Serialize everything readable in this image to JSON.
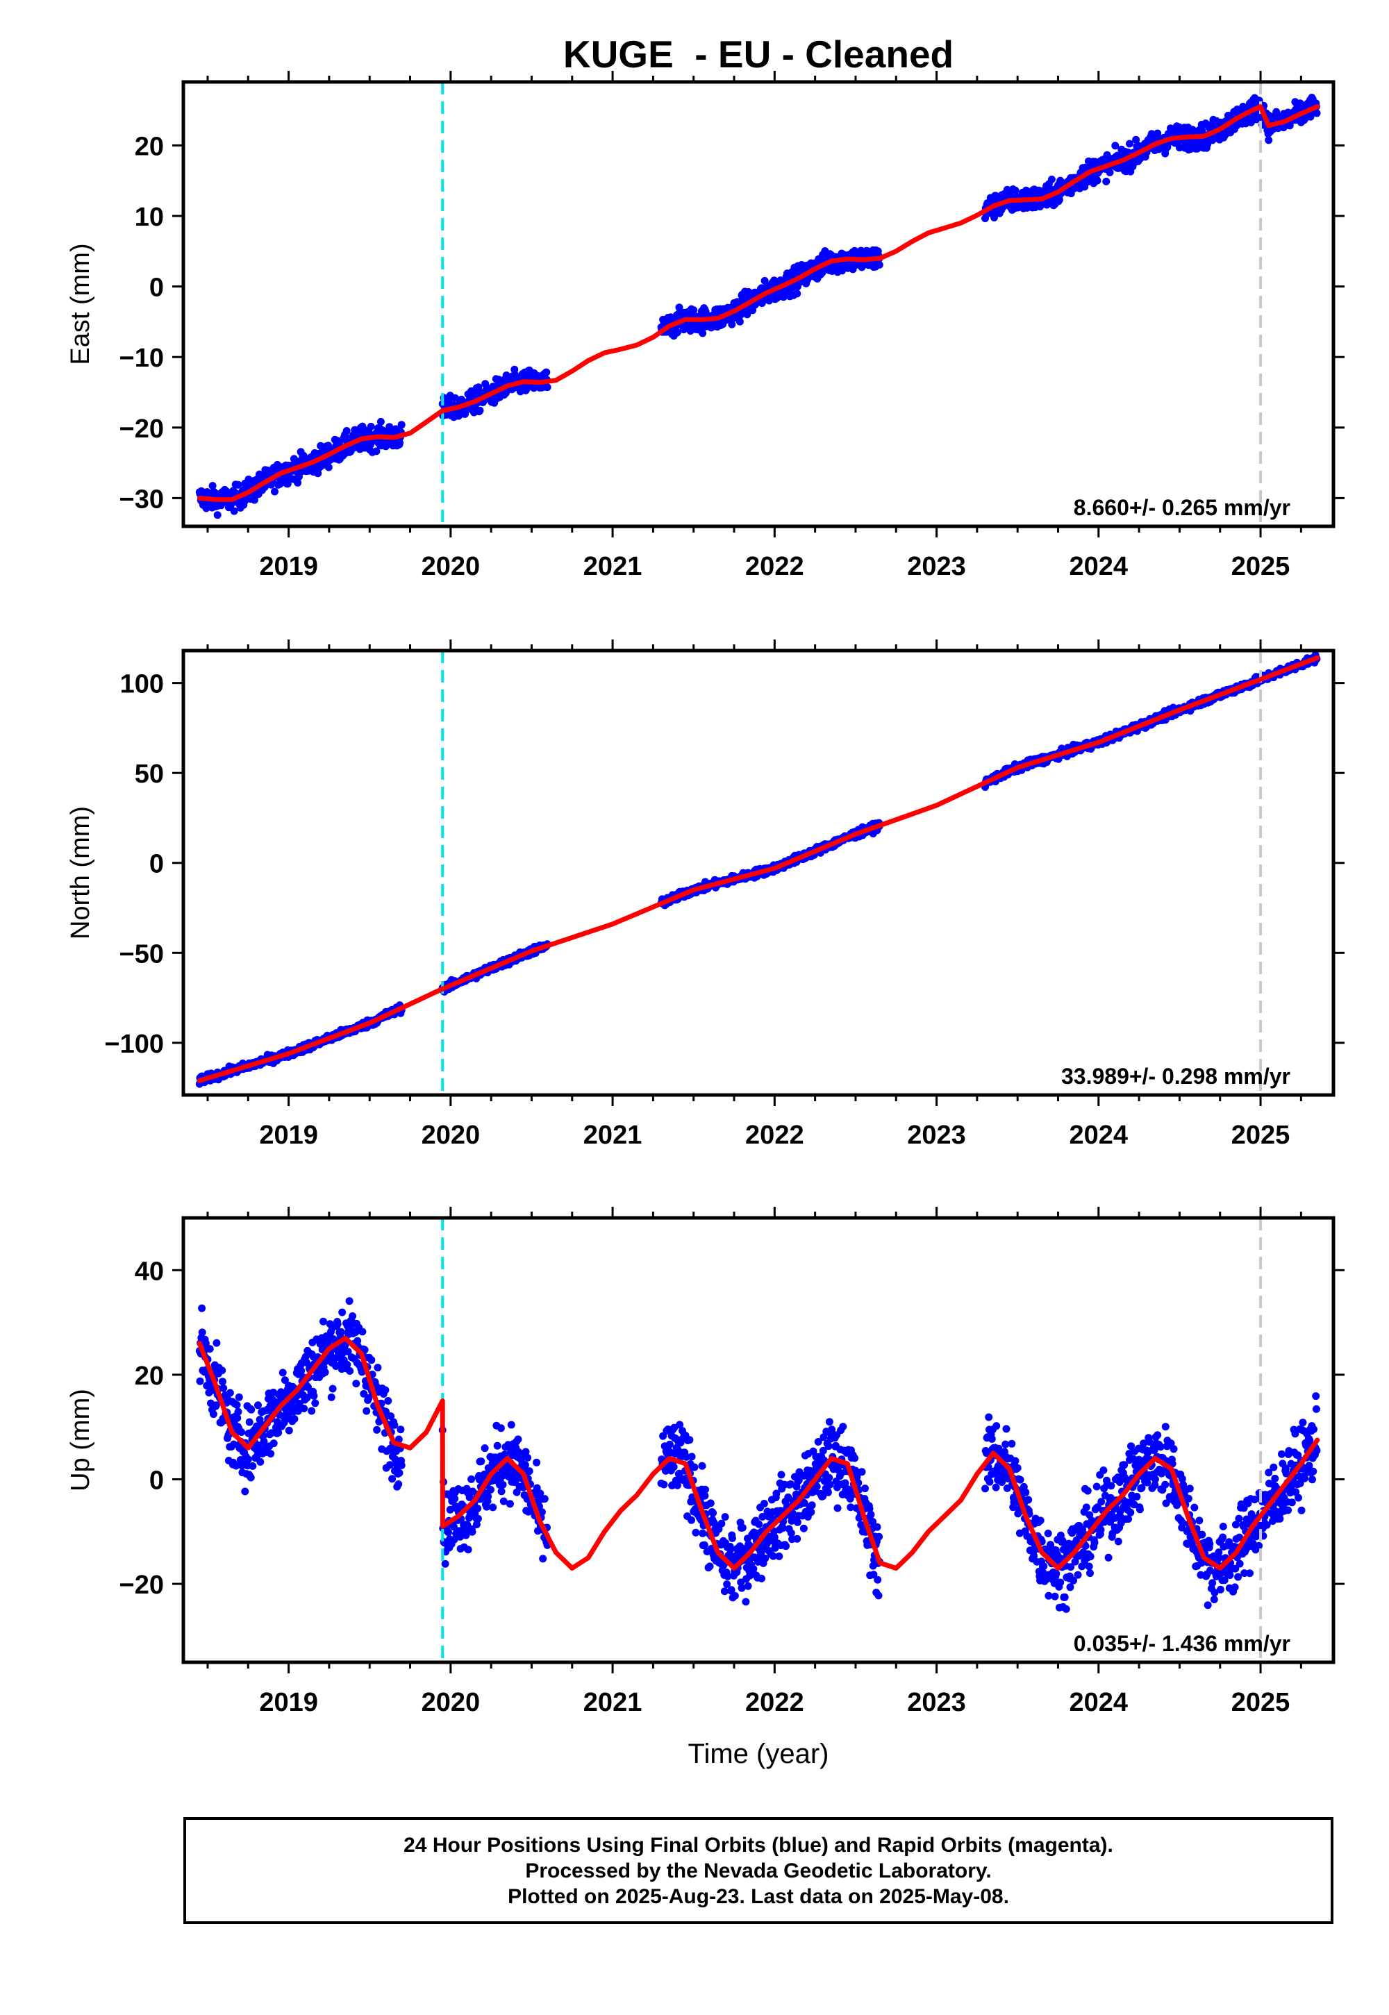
{
  "title": "KUGE  - EU - Cleaned",
  "colors": {
    "observations": "#0000ff",
    "model": "#ff0000",
    "marker_2020": "#00e5e5",
    "marker_2025": "#c8c8c8"
  },
  "chart_data": [
    {
      "type": "scatter",
      "component": "East",
      "ylabel": "East (mm)",
      "xlabel": "",
      "xlim": [
        2018.35,
        2025.45
      ],
      "ylim": [
        -34,
        29
      ],
      "yticks": [
        -30,
        -20,
        -10,
        0,
        10,
        20
      ],
      "xticks": [
        2019,
        2020,
        2021,
        2022,
        2023,
        2024,
        2025
      ],
      "vertical_lines": [
        {
          "x": 2019.95,
          "color": "cyan",
          "style": "dashed"
        },
        {
          "x": 2025.0,
          "color": "light-gray",
          "style": "dashed"
        }
      ],
      "rate_annotation": "8.660+/- 0.265 mm/yr",
      "observations": {
        "name": "24 Hour Positions (Final Orbits)",
        "segments": [
          [
            2018.45,
            2019.7
          ],
          [
            2019.95,
            2020.6
          ],
          [
            2021.3,
            2022.65
          ],
          [
            2023.3,
            2025.35
          ]
        ],
        "noise_mm": 1.2
      },
      "model": {
        "name": "fit",
        "x": [
          2018.45,
          2018.55,
          2018.65,
          2018.75,
          2018.85,
          2018.95,
          2019.05,
          2019.15,
          2019.25,
          2019.35,
          2019.45,
          2019.55,
          2019.65,
          2019.75,
          2019.85,
          2019.95,
          2020.05,
          2020.15,
          2020.25,
          2020.35,
          2020.45,
          2020.55,
          2020.65,
          2020.75,
          2020.85,
          2020.95,
          2021.05,
          2021.15,
          2021.25,
          2021.35,
          2021.45,
          2021.55,
          2021.65,
          2021.75,
          2021.85,
          2021.95,
          2022.05,
          2022.15,
          2022.25,
          2022.35,
          2022.45,
          2022.55,
          2022.65,
          2022.75,
          2022.85,
          2022.95,
          2023.05,
          2023.15,
          2023.25,
          2023.35,
          2023.45,
          2023.55,
          2023.65,
          2023.75,
          2023.85,
          2023.95,
          2024.05,
          2024.15,
          2024.25,
          2024.35,
          2024.45,
          2024.55,
          2024.65,
          2024.75,
          2024.85,
          2024.95,
          2025.0,
          2025.05,
          2025.15,
          2025.25,
          2025.35
        ],
        "y": [
          -30,
          -30.2,
          -30.2,
          -29.2,
          -27.8,
          -26.5,
          -25.7,
          -24.9,
          -23.8,
          -22.6,
          -21.6,
          -21.3,
          -21.4,
          -20.8,
          -19.2,
          -17.6,
          -17.1,
          -16.3,
          -15.2,
          -14.1,
          -13.5,
          -13.6,
          -13.3,
          -12.0,
          -10.5,
          -9.4,
          -8.9,
          -8.3,
          -7.2,
          -5.6,
          -4.7,
          -4.7,
          -4.5,
          -3.5,
          -2.2,
          -0.9,
          0.1,
          1.2,
          2.5,
          3.6,
          3.9,
          3.8,
          4.0,
          5.0,
          6.4,
          7.6,
          8.3,
          9.0,
          10.1,
          11.4,
          12.2,
          12.3,
          12.4,
          13.4,
          14.9,
          16.3,
          17.1,
          17.9,
          19.0,
          20.2,
          21.0,
          21.2,
          21.3,
          22.3,
          23.8,
          25.0,
          25.5,
          22.8,
          23.4,
          24.5,
          25.5
        ]
      }
    },
    {
      "type": "scatter",
      "component": "North",
      "ylabel": "North (mm)",
      "xlabel": "",
      "xlim": [
        2018.35,
        2025.45
      ],
      "ylim": [
        -129,
        118
      ],
      "yticks": [
        -100,
        -50,
        0,
        50,
        100
      ],
      "xticks": [
        2019,
        2020,
        2021,
        2022,
        2023,
        2024,
        2025
      ],
      "vertical_lines": [
        {
          "x": 2019.95,
          "color": "cyan",
          "style": "dashed"
        },
        {
          "x": 2025.0,
          "color": "light-gray",
          "style": "dashed"
        }
      ],
      "rate_annotation": "33.989+/- 0.298 mm/yr",
      "observations": {
        "name": "24 Hour Positions (Final Orbits)",
        "segments": [
          [
            2018.45,
            2019.7
          ],
          [
            2019.95,
            2020.6
          ],
          [
            2021.3,
            2022.65
          ],
          [
            2023.3,
            2025.35
          ]
        ],
        "noise_mm": 1.5
      },
      "model": {
        "name": "fit",
        "x": [
          2018.45,
          2019.0,
          2019.5,
          2019.95,
          2020.5,
          2021.0,
          2021.5,
          2022.0,
          2022.5,
          2023.0,
          2023.5,
          2024.0,
          2024.5,
          2025.0,
          2025.35
        ],
        "y": [
          -121,
          -106,
          -89,
          -70,
          -49,
          -34,
          -15,
          -3,
          16,
          32,
          53,
          67,
          85,
          102,
          114
        ]
      }
    },
    {
      "type": "scatter",
      "component": "Up",
      "ylabel": "Up (mm)",
      "xlabel": "Time (year)",
      "xlim": [
        2018.35,
        2025.45
      ],
      "ylim": [
        -35,
        50
      ],
      "yticks": [
        -20,
        0,
        20,
        40
      ],
      "xticks": [
        2019,
        2020,
        2021,
        2022,
        2023,
        2024,
        2025
      ],
      "vertical_lines": [
        {
          "x": 2019.95,
          "color": "cyan",
          "style": "dashed"
        },
        {
          "x": 2025.0,
          "color": "light-gray",
          "style": "dashed"
        }
      ],
      "rate_annotation": "0.035+/- 1.436 mm/yr",
      "observations": {
        "name": "24 Hour Positions (Final Orbits)",
        "segments": [
          [
            2018.45,
            2019.7
          ],
          [
            2019.95,
            2020.6
          ],
          [
            2021.3,
            2022.65
          ],
          [
            2023.3,
            2025.35
          ]
        ],
        "noise_mm": 5.0
      },
      "model": {
        "name": "fit",
        "x": [
          2018.45,
          2018.55,
          2018.65,
          2018.75,
          2018.85,
          2018.95,
          2019.05,
          2019.15,
          2019.25,
          2019.35,
          2019.45,
          2019.55,
          2019.65,
          2019.75,
          2019.85,
          2019.95,
          2019.951,
          2020.05,
          2020.15,
          2020.25,
          2020.35,
          2020.45,
          2020.55,
          2020.65,
          2020.75,
          2020.85,
          2020.95,
          2021.05,
          2021.15,
          2021.25,
          2021.35,
          2021.45,
          2021.55,
          2021.65,
          2021.75,
          2021.85,
          2021.95,
          2022.05,
          2022.15,
          2022.25,
          2022.35,
          2022.45,
          2022.55,
          2022.65,
          2022.75,
          2022.85,
          2022.95,
          2023.05,
          2023.15,
          2023.25,
          2023.35,
          2023.45,
          2023.55,
          2023.65,
          2023.75,
          2023.85,
          2023.95,
          2024.05,
          2024.15,
          2024.25,
          2024.35,
          2024.45,
          2024.55,
          2024.65,
          2024.75,
          2024.85,
          2024.95,
          2025.05,
          2025.15,
          2025.25,
          2025.35
        ],
        "y": [
          26,
          18,
          9,
          6,
          10,
          14,
          17,
          21,
          25,
          27,
          24,
          14,
          7,
          6,
          9,
          15,
          -9,
          -7,
          -4,
          1,
          4,
          1,
          -8,
          -14,
          -17,
          -15,
          -10,
          -6,
          -3,
          1,
          4,
          3,
          -6,
          -14,
          -17,
          -14,
          -10,
          -7,
          -4,
          0,
          4,
          3,
          -7,
          -16,
          -17,
          -14,
          -10,
          -7,
          -4,
          1,
          5,
          2,
          -7,
          -14,
          -17,
          -14,
          -10,
          -6,
          -3,
          1,
          4,
          2,
          -7,
          -15,
          -17,
          -14,
          -9,
          -5,
          -1,
          3,
          7.5
        ]
      }
    }
  ],
  "footer": {
    "line1": "24 Hour Positions Using Final Orbits (blue) and Rapid Orbits (magenta).",
    "line2": "Processed by the Nevada Geodetic Laboratory.",
    "line3": "Plotted on 2025-Aug-23. Last data on 2025-May-08."
  }
}
